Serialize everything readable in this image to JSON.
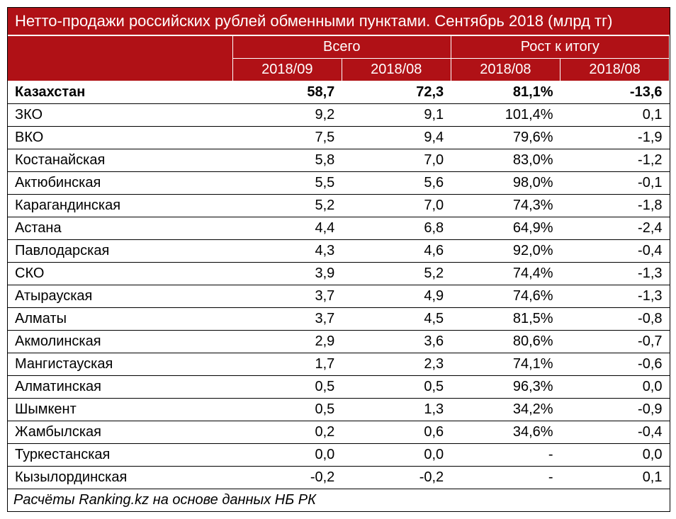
{
  "title": "Нетто-продажи российских рублей обменными пунктами. Сентябрь 2018 (млрд тг)",
  "header_group_1": "Всего",
  "header_group_2": "Рост к итогу",
  "sub_1": "2018/09",
  "sub_2": "2018/08",
  "sub_3": "2018/08",
  "sub_4": "2018/08",
  "rows": [
    {
      "label": "Казахстан",
      "c1": "58,7",
      "c2": "72,3",
      "c3": "81,1%",
      "c4": "-13,6",
      "bold": true
    },
    {
      "label": "ЗКО",
      "c1": "9,2",
      "c2": "9,1",
      "c3": "101,4%",
      "c4": "0,1"
    },
    {
      "label": "ВКО",
      "c1": "7,5",
      "c2": "9,4",
      "c3": "79,6%",
      "c4": "-1,9"
    },
    {
      "label": "Костанайская",
      "c1": "5,8",
      "c2": "7,0",
      "c3": "83,0%",
      "c4": "-1,2"
    },
    {
      "label": "Актюбинская",
      "c1": "5,5",
      "c2": "5,6",
      "c3": "98,0%",
      "c4": "-0,1"
    },
    {
      "label": "Карагандинская",
      "c1": "5,2",
      "c2": "7,0",
      "c3": "74,3%",
      "c4": "-1,8"
    },
    {
      "label": "Астана",
      "c1": "4,4",
      "c2": "6,8",
      "c3": "64,9%",
      "c4": "-2,4"
    },
    {
      "label": "Павлодарская",
      "c1": "4,3",
      "c2": "4,6",
      "c3": "92,0%",
      "c4": "-0,4"
    },
    {
      "label": "СКО",
      "c1": "3,9",
      "c2": "5,2",
      "c3": "74,4%",
      "c4": "-1,3"
    },
    {
      "label": "Атырауская",
      "c1": "3,7",
      "c2": "4,9",
      "c3": "74,6%",
      "c4": "-1,3"
    },
    {
      "label": "Алматы",
      "c1": "3,7",
      "c2": "4,5",
      "c3": "81,5%",
      "c4": "-0,8"
    },
    {
      "label": "Акмолинская",
      "c1": "2,9",
      "c2": "3,6",
      "c3": "80,6%",
      "c4": "-0,7"
    },
    {
      "label": "Мангистауская",
      "c1": "1,7",
      "c2": "2,3",
      "c3": "74,1%",
      "c4": "-0,6"
    },
    {
      "label": "Алматинская",
      "c1": "0,5",
      "c2": "0,5",
      "c3": "96,3%",
      "c4": "0,0"
    },
    {
      "label": "Шымкент",
      "c1": "0,5",
      "c2": "1,3",
      "c3": "34,2%",
      "c4": "-0,9"
    },
    {
      "label": "Жамбылская",
      "c1": "0,2",
      "c2": "0,6",
      "c3": "34,6%",
      "c4": "-0,4"
    },
    {
      "label": "Туркестанская",
      "c1": "0,0",
      "c2": "0,0",
      "c3": "-",
      "c4": "0,0"
    },
    {
      "label": "Кызылординская",
      "c1": "-0,2",
      "c2": "-0,2",
      "c3": "-",
      "c4": "0,1"
    }
  ],
  "footer": "Расчёты Ranking.kz на основе данных НБ РК",
  "colors": {
    "header_bg": "#b01116",
    "header_fg": "#ffffff",
    "border": "#000000"
  }
}
